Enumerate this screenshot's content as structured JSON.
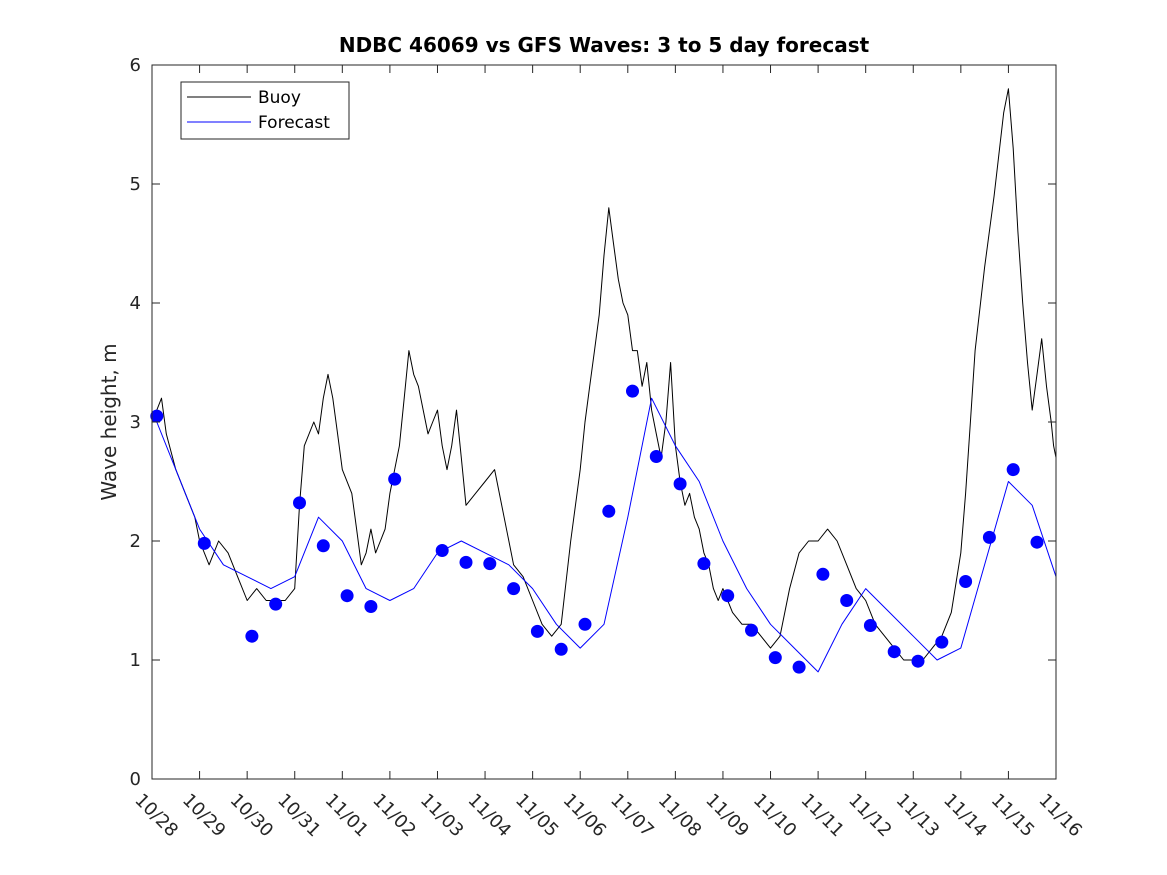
{
  "chart_data": {
    "type": "line",
    "title": "NDBC 46069 vs GFS Waves: 3 to 5 day forecast",
    "xlabel": "",
    "ylabel": "Wave height, m",
    "xlim": [
      0,
      19
    ],
    "ylim": [
      0,
      6
    ],
    "yticks": [
      0,
      1,
      2,
      3,
      4,
      5,
      6
    ],
    "xtick_labels": [
      "10/28",
      "10/29",
      "10/30",
      "10/31",
      "11/01",
      "11/02",
      "11/03",
      "11/04",
      "11/05",
      "11/06",
      "11/07",
      "11/08",
      "11/09",
      "11/10",
      "11/11",
      "11/12",
      "11/13",
      "11/14",
      "11/15",
      "11/16"
    ],
    "legend": {
      "location": "top-left",
      "entries": [
        "Buoy",
        "Forecast"
      ]
    },
    "colors": {
      "buoy": "#000000",
      "forecast": "#0000ff"
    },
    "series": [
      {
        "name": "Buoy",
        "x": [
          0.0,
          0.1,
          0.2,
          0.3,
          0.5,
          0.7,
          0.9,
          1.0,
          1.2,
          1.4,
          1.6,
          1.8,
          2.0,
          2.2,
          2.4,
          2.6,
          2.8,
          3.0,
          3.1,
          3.2,
          3.4,
          3.5,
          3.6,
          3.7,
          3.8,
          3.9,
          4.0,
          4.2,
          4.3,
          4.4,
          4.5,
          4.6,
          4.7,
          4.8,
          4.9,
          5.0,
          5.2,
          5.3,
          5.4,
          5.5,
          5.6,
          5.7,
          5.8,
          5.9,
          6.0,
          6.1,
          6.2,
          6.3,
          6.4,
          6.5,
          6.6,
          6.8,
          7.0,
          7.2,
          7.4,
          7.6,
          7.8,
          8.0,
          8.2,
          8.4,
          8.6,
          8.8,
          9.0,
          9.1,
          9.2,
          9.3,
          9.4,
          9.5,
          9.6,
          9.7,
          9.8,
          9.9,
          10.0,
          10.1,
          10.2,
          10.3,
          10.4,
          10.5,
          10.6,
          10.7,
          10.8,
          10.9,
          11.0,
          11.1,
          11.2,
          11.3,
          11.4,
          11.5,
          11.6,
          11.7,
          11.8,
          11.9,
          12.0,
          12.2,
          12.4,
          12.6,
          12.8,
          13.0,
          13.2,
          13.4,
          13.6,
          13.8,
          14.0,
          14.2,
          14.4,
          14.6,
          14.8,
          15.0,
          15.2,
          15.4,
          15.6,
          15.8,
          16.0,
          16.2,
          16.4,
          16.6,
          16.8,
          17.0,
          17.1,
          17.2,
          17.3,
          17.5,
          17.7,
          17.9,
          18.0,
          18.1,
          18.2,
          18.3,
          18.4,
          18.5,
          18.6,
          18.7,
          18.8,
          18.9,
          18.95,
          19.0
        ],
        "values": [
          3.0,
          3.1,
          3.2,
          2.9,
          2.6,
          2.4,
          2.2,
          2.0,
          1.8,
          2.0,
          1.9,
          1.7,
          1.5,
          1.6,
          1.5,
          1.5,
          1.5,
          1.6,
          2.3,
          2.8,
          3.0,
          2.9,
          3.2,
          3.4,
          3.2,
          2.9,
          2.6,
          2.4,
          2.1,
          1.8,
          1.9,
          2.1,
          1.9,
          2.0,
          2.1,
          2.4,
          2.8,
          3.2,
          3.6,
          3.4,
          3.3,
          3.1,
          2.9,
          3.0,
          3.1,
          2.8,
          2.6,
          2.8,
          3.1,
          2.7,
          2.3,
          2.4,
          2.5,
          2.6,
          2.2,
          1.8,
          1.7,
          1.5,
          1.3,
          1.2,
          1.3,
          2.0,
          2.6,
          3.0,
          3.3,
          3.6,
          3.9,
          4.4,
          4.8,
          4.5,
          4.2,
          4.0,
          3.9,
          3.6,
          3.6,
          3.3,
          3.5,
          3.1,
          2.9,
          2.7,
          3.0,
          3.5,
          2.8,
          2.5,
          2.3,
          2.4,
          2.2,
          2.1,
          1.9,
          1.8,
          1.6,
          1.5,
          1.6,
          1.4,
          1.3,
          1.3,
          1.2,
          1.1,
          1.2,
          1.6,
          1.9,
          2.0,
          2.0,
          2.1,
          2.0,
          1.8,
          1.6,
          1.5,
          1.3,
          1.2,
          1.1,
          1.0,
          1.0,
          1.0,
          1.1,
          1.2,
          1.4,
          1.9,
          2.4,
          3.0,
          3.6,
          4.3,
          4.9,
          5.6,
          5.8,
          5.3,
          4.6,
          4.0,
          3.5,
          3.1,
          3.4,
          3.7,
          3.3,
          3.0,
          2.8,
          2.7
        ]
      },
      {
        "name": "Forecast",
        "x": [
          0.1,
          0.5,
          1.0,
          1.5,
          2.0,
          2.5,
          3.0,
          3.5,
          4.0,
          4.5,
          5.0,
          5.5,
          6.0,
          6.5,
          7.0,
          7.5,
          8.0,
          8.5,
          9.0,
          9.5,
          10.0,
          10.5,
          11.0,
          11.5,
          12.0,
          12.5,
          13.0,
          13.5,
          14.0,
          14.5,
          15.0,
          15.5,
          16.0,
          16.5,
          17.0,
          17.5,
          18.0,
          18.5,
          19.0
        ],
        "values": [
          3.0,
          2.6,
          2.1,
          1.8,
          1.7,
          1.6,
          1.7,
          2.2,
          2.0,
          1.6,
          1.5,
          1.6,
          1.9,
          2.0,
          1.9,
          1.8,
          1.6,
          1.3,
          1.1,
          1.3,
          2.2,
          3.2,
          2.8,
          2.5,
          2.0,
          1.6,
          1.3,
          1.1,
          0.9,
          1.3,
          1.6,
          1.4,
          1.2,
          1.0,
          1.1,
          1.8,
          2.5,
          2.3,
          1.7
        ]
      }
    ],
    "markers": {
      "x": [
        0.1,
        1.1,
        2.1,
        2.6,
        3.1,
        3.6,
        4.1,
        4.6,
        5.1,
        6.1,
        6.6,
        7.1,
        7.6,
        8.1,
        8.6,
        9.1,
        9.6,
        10.1,
        10.6,
        11.1,
        11.6,
        12.1,
        12.6,
        13.1,
        13.6,
        14.1,
        14.6,
        15.1,
        15.6,
        16.1,
        16.6,
        17.1,
        17.6,
        18.1,
        18.6
      ],
      "values": [
        3.05,
        1.98,
        1.2,
        1.47,
        2.32,
        1.96,
        1.54,
        1.45,
        2.52,
        1.92,
        1.82,
        1.81,
        1.6,
        1.24,
        1.09,
        1.3,
        2.25,
        3.26,
        2.71,
        2.48,
        1.81,
        1.54,
        1.25,
        1.02,
        0.94,
        1.72,
        1.5,
        1.29,
        1.07,
        0.99,
        1.15,
        1.66,
        2.03,
        2.6,
        1.99
      ]
    }
  }
}
